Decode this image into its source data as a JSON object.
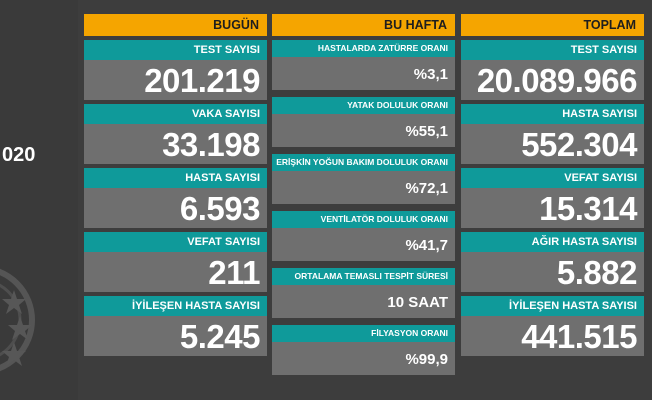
{
  "side": {
    "date_fragment": "020"
  },
  "today": {
    "header": "BUGÜN",
    "cards": [
      {
        "label": "TEST SAYISI",
        "value": "201.219"
      },
      {
        "label": "VAKA SAYISI",
        "value": "33.198"
      },
      {
        "label": "HASTA SAYISI",
        "value": "6.593"
      },
      {
        "label": "VEFAT SAYISI",
        "value": "211"
      },
      {
        "label": "İYİLEŞEN HASTA SAYISI",
        "value": "5.245"
      }
    ]
  },
  "week": {
    "header": "BU HAFTA",
    "cards": [
      {
        "label": "HASTALARDA ZATÜRRE ORANI",
        "value": "%3,1"
      },
      {
        "label": "YATAK DOLULUK ORANI",
        "value": "%55,1"
      },
      {
        "label": "ERİŞKİN YOĞUN BAKIM DOLULUK ORANI",
        "value": "%72,1"
      },
      {
        "label": "VENTİLATÖR DOLULUK ORANI",
        "value": "%41,7"
      },
      {
        "label": "ORTALAMA TEMASLI TESPİT SÜRESİ",
        "value": "10 SAAT"
      },
      {
        "label": "FİLYASYON ORANI",
        "value": "%99,9"
      }
    ]
  },
  "total": {
    "header": "TOPLAM",
    "cards": [
      {
        "label": "TEST SAYISI",
        "value": "20.089.966"
      },
      {
        "label": "HASTA SAYISI",
        "value": "552.304"
      },
      {
        "label": "VEFAT SAYISI",
        "value": "15.314"
      },
      {
        "label": "AĞIR HASTA SAYISI",
        "value": "5.882"
      },
      {
        "label": "İYİLEŞEN HASTA SAYISI",
        "value": "441.515"
      }
    ]
  },
  "colors": {
    "header_bg": "#f5a500",
    "label_bg": "#0f9a9a",
    "value_bg": "#6f6f6f",
    "page_bg": "#3d3d3d"
  },
  "icons": {
    "emblem": "ministry-emblem-icon"
  }
}
